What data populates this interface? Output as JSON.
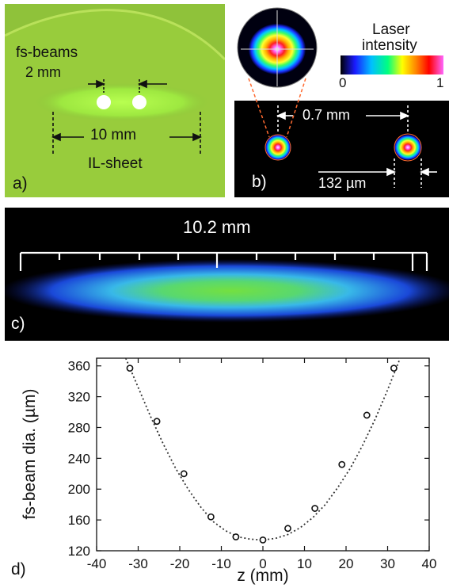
{
  "panel_a": {
    "label": "a)",
    "beams_label": "fs-beams",
    "beam_sep_label": "2 mm",
    "sheet_width_label": "10 mm",
    "sheet_label": "IL-sheet",
    "colors": {
      "background": "#93c83a",
      "sheet": "#a6f040",
      "beam": "#ffffff"
    }
  },
  "panel_b": {
    "label": "b)",
    "legend_title_1": "Laser",
    "legend_title_2": "intensity",
    "legend_min": "0",
    "legend_max": "1",
    "sep_label": "0.7 mm",
    "diameter_label": "132 µm",
    "colors": {
      "background": "#000000",
      "colorbar": [
        "#000000",
        "#1a1aff",
        "#00bfff",
        "#00ff80",
        "#ffff00",
        "#ff7f00",
        "#ff0000",
        "#ff66ff"
      ]
    }
  },
  "panel_c": {
    "label": "c)",
    "length_label": "10.2 mm",
    "colors": {
      "background": "#000000",
      "sheet_outer": "#1a40d0",
      "sheet_mid": "#40c0e0",
      "sheet_core": "#70e040"
    }
  },
  "panel_d": {
    "label": "d)"
  },
  "chart_data": {
    "type": "scatter",
    "xlabel": "z (mm)",
    "ylabel": "fs-beam dia. (µm)",
    "xlim": [
      -40,
      40
    ],
    "ylim": [
      120,
      370
    ],
    "xticks": [
      -40,
      -30,
      -20,
      -10,
      0,
      10,
      20,
      30,
      40
    ],
    "yticks": [
      120,
      160,
      200,
      240,
      280,
      320,
      360
    ],
    "grid": false,
    "series": [
      {
        "x": [
          -32,
          -25.5,
          -19,
          -12.5,
          -6.5,
          0,
          6,
          12.5,
          19,
          25,
          31.5
        ],
        "values": [
          357,
          288,
          220,
          164,
          138,
          134,
          149,
          175,
          232,
          296,
          357
        ]
      }
    ],
    "fit": {
      "style": "dotted",
      "x": [
        -33,
        -30,
        -27,
        -24,
        -21,
        -18,
        -15,
        -12,
        -9,
        -6,
        -3,
        0,
        3,
        6,
        9,
        12,
        15,
        18,
        21,
        24,
        27,
        30,
        33
      ],
      "values": [
        374,
        332,
        294,
        259,
        227,
        200,
        177,
        158,
        146,
        138,
        135,
        134,
        136,
        141,
        150,
        163,
        180,
        202,
        227,
        257,
        291,
        329,
        371
      ]
    }
  }
}
